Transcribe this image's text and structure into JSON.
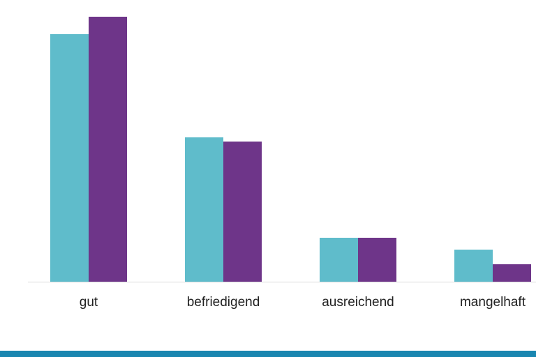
{
  "chart_data": {
    "type": "bar",
    "categories": [
      "gut",
      "befriedigend",
      "ausreichend",
      "mangelhaft"
    ],
    "series": [
      {
        "color": "#5fbccb",
        "values": [
          355,
          207,
          63,
          46
        ]
      },
      {
        "color": "#6e3589",
        "values": [
          380,
          201,
          63,
          25
        ]
      }
    ],
    "ylim": [
      0,
      400
    ]
  }
}
